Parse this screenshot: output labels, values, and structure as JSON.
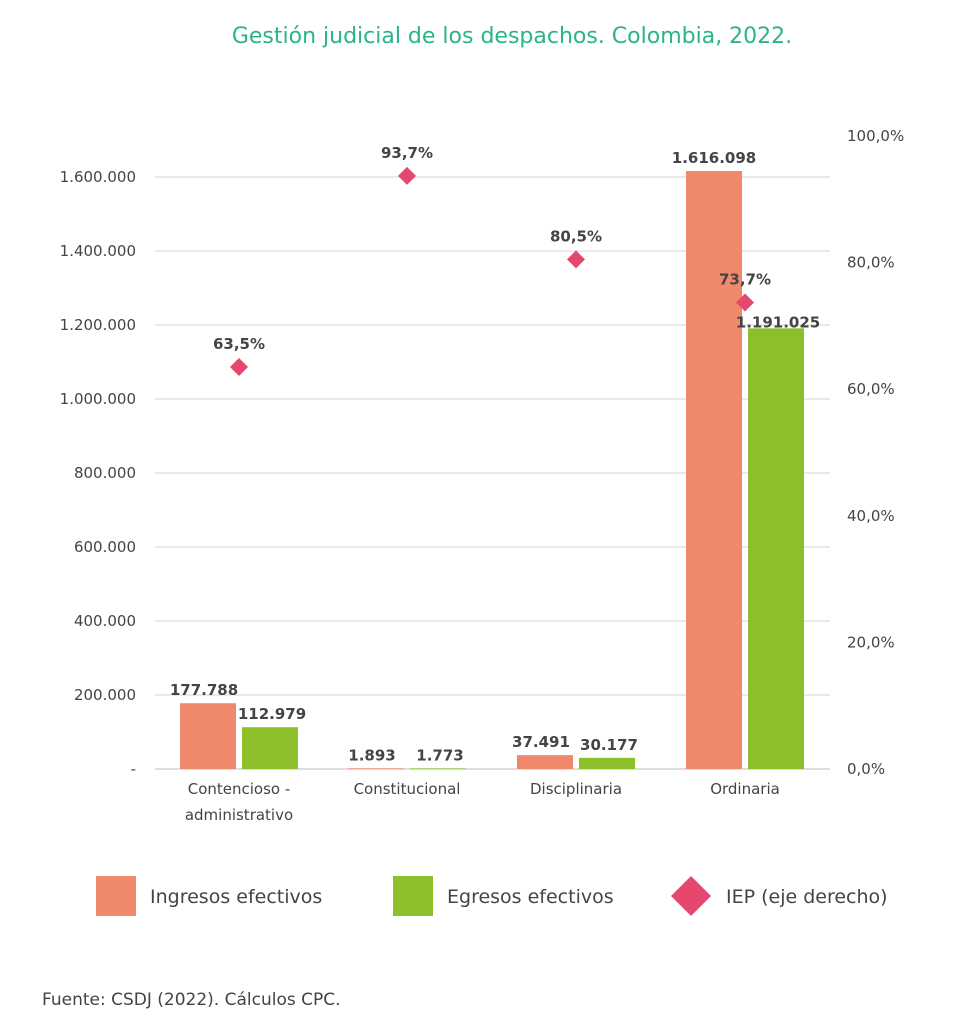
{
  "chart_data": {
    "type": "bar",
    "title": "Gestión judicial de los despachos. Colombia, 2022.",
    "categories": [
      "Contencioso - administrativo",
      "Constitucional",
      "Disciplinaria",
      "Ordinaria"
    ],
    "category_lines": [
      [
        "Contencioso -",
        "administrativo"
      ],
      [
        "Constitucional"
      ],
      [
        "Disciplinaria"
      ],
      [
        "Ordinaria"
      ]
    ],
    "series": [
      {
        "name": "Ingresos efectivos",
        "type": "bar",
        "axis": "left",
        "color": "#f0896b",
        "values": [
          177788,
          1893,
          37491,
          1616098
        ],
        "labels": [
          "177.788",
          "1.893",
          "37.491",
          "1.616.098"
        ]
      },
      {
        "name": "Egresos efectivos",
        "type": "bar",
        "axis": "left",
        "color": "#8cbf2a",
        "values": [
          112979,
          1773,
          30177,
          1191025
        ],
        "labels": [
          "112.979",
          "1.773",
          "30.177",
          "1.191.025"
        ]
      },
      {
        "name": "IEP (eje derecho)",
        "type": "scatter",
        "marker": "diamond",
        "axis": "right",
        "color": "#e5486e",
        "values": [
          63.5,
          93.7,
          80.5,
          73.7
        ],
        "labels": [
          "63,5%",
          "93,7%",
          "80,5%",
          "73,7%"
        ]
      }
    ],
    "y_left": {
      "ylim": [
        0,
        1600000
      ],
      "ticks": [
        0,
        200000,
        400000,
        600000,
        800000,
        1000000,
        1200000,
        1400000,
        1600000
      ],
      "tick_labels": [
        "-",
        "200.000",
        "400.000",
        "600.000",
        "800.000",
        "1.000.000",
        "1.200.000",
        "1.400.000",
        "1.600.000"
      ]
    },
    "y_right": {
      "ylim": [
        0,
        100
      ],
      "ticks": [
        0,
        20,
        40,
        60,
        80,
        100
      ],
      "tick_labels": [
        "0,0%",
        "20,0%",
        "40,0%",
        "60,0%",
        "80,0%",
        "100,0%"
      ]
    },
    "grid": true,
    "legend_position": "bottom"
  },
  "source": "Fuente: CSDJ (2022). Cálculos CPC."
}
